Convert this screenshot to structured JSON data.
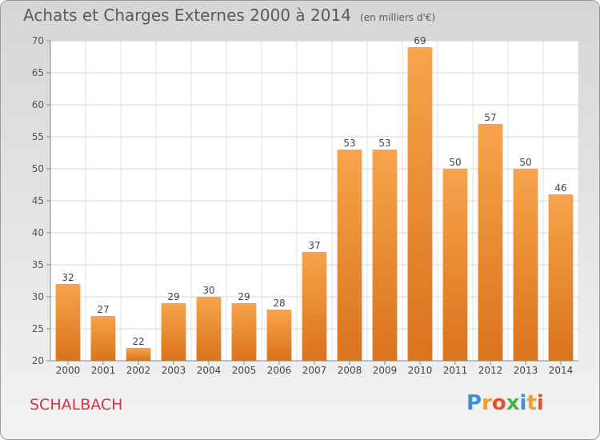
{
  "chart_data": {
    "type": "bar",
    "title": "Achats et Charges Externes 2000 à 2014",
    "subtitle": "(en milliers d'€)",
    "categories": [
      "2000",
      "2001",
      "2002",
      "2003",
      "2004",
      "2005",
      "2006",
      "2007",
      "2008",
      "2009",
      "2010",
      "2011",
      "2012",
      "2013",
      "2014"
    ],
    "values": [
      32,
      27,
      22,
      29,
      30,
      29,
      28,
      37,
      53,
      53,
      69,
      50,
      57,
      50,
      46
    ],
    "ylim": [
      20,
      70
    ],
    "yticks": [
      20,
      25,
      30,
      35,
      40,
      45,
      50,
      55,
      60,
      65,
      70
    ],
    "grid": true,
    "bar_color_top": "#f7a44c",
    "bar_color_bottom": "#d9731c"
  },
  "commune": "SCHALBACH",
  "logo": {
    "text": "Proxiti",
    "letters": [
      {
        "ch": "P",
        "color": "#3f8fd6"
      },
      {
        "ch": "r",
        "color": "#f0a12a"
      },
      {
        "ch": "o",
        "color": "#e8502f"
      },
      {
        "ch": "x",
        "color": "#4db04a"
      },
      {
        "ch": "i",
        "color": "#3f8fd6"
      },
      {
        "ch": "t",
        "color": "#f0a12a"
      },
      {
        "ch": "i",
        "color": "#e8502f"
      }
    ]
  }
}
